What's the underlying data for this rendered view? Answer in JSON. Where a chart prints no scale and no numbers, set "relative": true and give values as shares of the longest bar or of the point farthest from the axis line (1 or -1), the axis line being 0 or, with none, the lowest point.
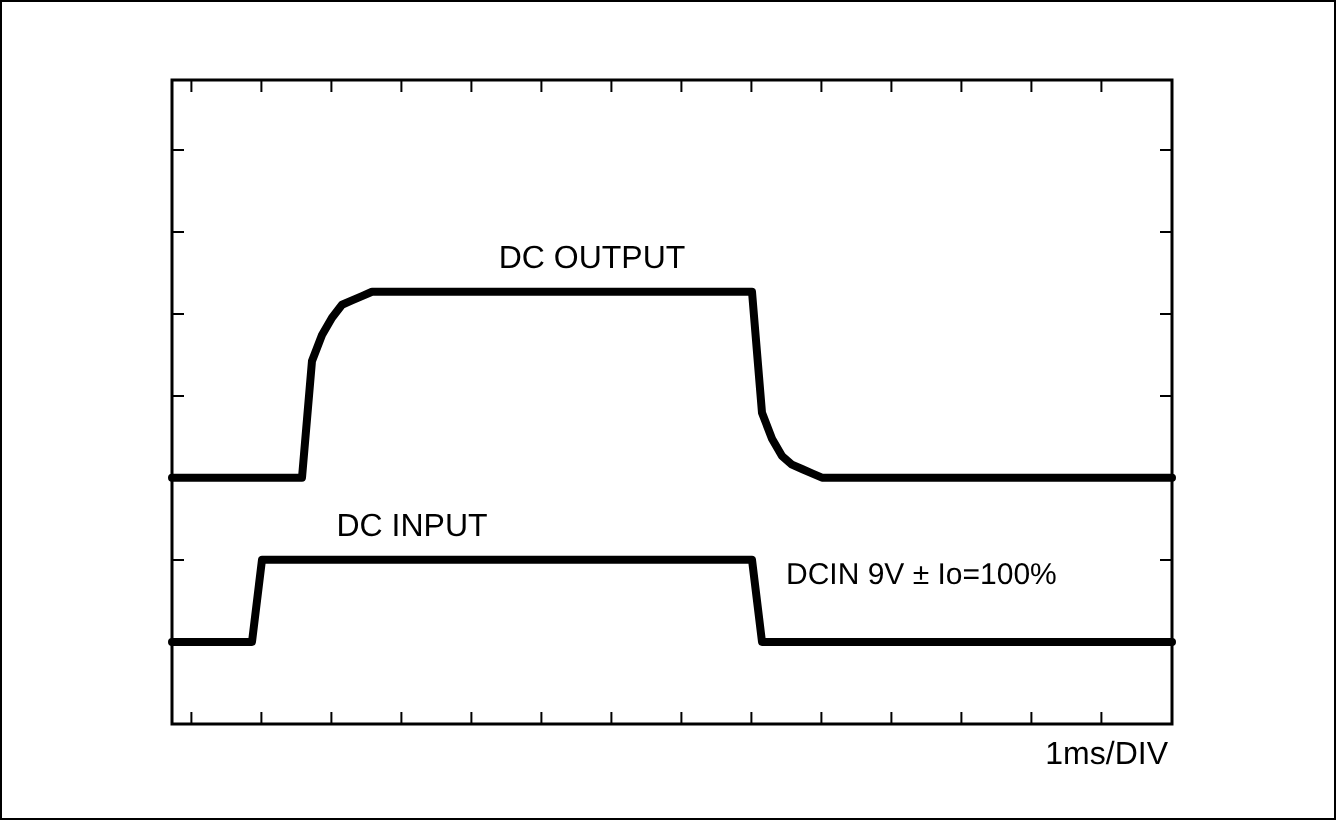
{
  "chart_data": {
    "type": "line",
    "relative": true,
    "legend": false,
    "grid": false,
    "marker": "none",
    "line_style": "solid",
    "categories": [
      null,
      null,
      null,
      null,
      null,
      null,
      null,
      null,
      null,
      null,
      null,
      null,
      null,
      null,
      null,
      null,
      null,
      null,
      null,
      null,
      null,
      null,
      null,
      null,
      null,
      null,
      null,
      null,
      null,
      null,
      null,
      null,
      null,
      null,
      null,
      null,
      null,
      null,
      null,
      null,
      null,
      null,
      null,
      null,
      null,
      null,
      null,
      null,
      null,
      null,
      null,
      null,
      null,
      null,
      null,
      null,
      null,
      null,
      null,
      null,
      null,
      null,
      null,
      null,
      null,
      null,
      null,
      null,
      null,
      null,
      null,
      null,
      null,
      null,
      null,
      null,
      null,
      null,
      null,
      null,
      null,
      null,
      null,
      null,
      null,
      null,
      null,
      null,
      null,
      null,
      null,
      null,
      null,
      null,
      null,
      null,
      null,
      null,
      null,
      null,
      null
    ],
    "series": [
      {
        "name": "DC OUTPUT",
        "color": "#000000",
        "values": [
          0.57,
          0.57,
          0.57,
          0.57,
          0.57,
          0.57,
          0.57,
          0.57,
          0.57,
          0.57,
          0.57,
          0.57,
          0.57,
          0.57,
          0.84,
          0.9,
          0.94,
          0.97,
          0.98,
          0.99,
          1,
          1,
          1,
          1,
          1,
          1,
          1,
          1,
          1,
          1,
          1,
          1,
          1,
          1,
          1,
          1,
          1,
          1,
          1,
          1,
          1,
          1,
          1,
          1,
          1,
          1,
          1,
          1,
          1,
          1,
          1,
          1,
          1,
          1,
          1,
          1,
          1,
          1,
          1,
          0.72,
          0.66,
          0.62,
          0.6,
          0.59,
          0.58,
          0.57,
          0.57,
          0.57,
          0.57,
          0.57,
          0.57,
          0.57,
          0.57,
          0.57,
          0.57,
          0.57,
          0.57,
          0.57,
          0.57,
          0.57,
          0.57,
          0.57,
          0.57,
          0.57,
          0.57,
          0.57,
          0.57,
          0.57,
          0.57,
          0.57,
          0.57,
          0.57,
          0.57,
          0.57,
          0.57,
          0.57,
          0.57,
          0.57,
          0.57,
          0.57,
          0.57
        ]
      },
      {
        "name": "DC INPUT",
        "color": "#000000",
        "values": [
          0.19,
          0.19,
          0.19,
          0.19,
          0.19,
          0.19,
          0.19,
          0.19,
          0.19,
          0.38,
          0.38,
          0.38,
          0.38,
          0.38,
          0.38,
          0.38,
          0.38,
          0.38,
          0.38,
          0.38,
          0.38,
          0.38,
          0.38,
          0.38,
          0.38,
          0.38,
          0.38,
          0.38,
          0.38,
          0.38,
          0.38,
          0.38,
          0.38,
          0.38,
          0.38,
          0.38,
          0.38,
          0.38,
          0.38,
          0.38,
          0.38,
          0.38,
          0.38,
          0.38,
          0.38,
          0.38,
          0.38,
          0.38,
          0.38,
          0.38,
          0.38,
          0.38,
          0.38,
          0.38,
          0.38,
          0.38,
          0.38,
          0.38,
          0.38,
          0.19,
          0.19,
          0.19,
          0.19,
          0.19,
          0.19,
          0.19,
          0.19,
          0.19,
          0.19,
          0.19,
          0.19,
          0.19,
          0.19,
          0.19,
          0.19,
          0.19,
          0.19,
          0.19,
          0.19,
          0.19,
          0.19,
          0.19,
          0.19,
          0.19,
          0.19,
          0.19,
          0.19,
          0.19,
          0.19,
          0.19,
          0.19,
          0.19,
          0.19,
          0.19,
          0.19,
          0.19,
          0.19,
          0.19,
          0.19,
          0.19,
          0.19
        ]
      }
    ],
    "annotations": [
      "DCIN 9V ± Io=100%",
      "1ms/DIV"
    ]
  }
}
